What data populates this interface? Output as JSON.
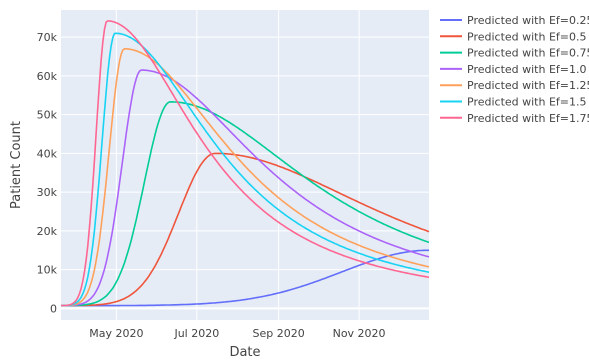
{
  "chart_data": {
    "type": "line",
    "title": "",
    "xlabel": "Date",
    "ylabel": "Patient Count",
    "x_range": [
      "2020-03-20",
      "2020-12-24"
    ],
    "ylim": [
      -3000,
      77000
    ],
    "x_ticks": [
      {
        "date": "2020-05-01",
        "label": "May 2020"
      },
      {
        "date": "2020-07-01",
        "label": "Jul 2020"
      },
      {
        "date": "2020-09-01",
        "label": "Sep 2020"
      },
      {
        "date": "2020-11-01",
        "label": "Nov 2020"
      }
    ],
    "y_ticks": [
      {
        "value": 0,
        "label": "0"
      },
      {
        "value": 10000,
        "label": "10k"
      },
      {
        "value": 20000,
        "label": "20k"
      },
      {
        "value": 30000,
        "label": "30k"
      },
      {
        "value": 40000,
        "label": "40k"
      },
      {
        "value": 50000,
        "label": "50k"
      },
      {
        "value": 60000,
        "label": "60k"
      },
      {
        "value": 70000,
        "label": "70k"
      }
    ],
    "grid": true,
    "legend_position": "right",
    "series": [
      {
        "name": "Predicted with Ef=0.25",
        "color": "#636efa",
        "peak_date": "2020-12-24",
        "peak_value": 15000,
        "start_value": 700
      },
      {
        "name": "Predicted with Ef=0.5",
        "color": "#ef553b",
        "peak_date": "2020-07-15",
        "peak_value": 40000,
        "start_value": 700
      },
      {
        "name": "Predicted with Ef=0.75",
        "color": "#00cc96",
        "peak_date": "2020-06-11",
        "peak_value": 53300,
        "start_value": 700
      },
      {
        "name": "Predicted with Ef=1.0",
        "color": "#ab63fa",
        "peak_date": "2020-05-20",
        "peak_value": 61500,
        "start_value": 700
      },
      {
        "name": "Predicted with Ef=1.25",
        "color": "#ffa15a",
        "peak_date": "2020-05-07",
        "peak_value": 67000,
        "start_value": 700
      },
      {
        "name": "Predicted with Ef=1.5",
        "color": "#19d3f3",
        "peak_date": "2020-04-30",
        "peak_value": 71000,
        "start_value": 700
      },
      {
        "name": "Predicted with Ef=1.75",
        "color": "#ff6692",
        "peak_date": "2020-04-24",
        "peak_value": 74200,
        "start_value": 700
      }
    ]
  }
}
